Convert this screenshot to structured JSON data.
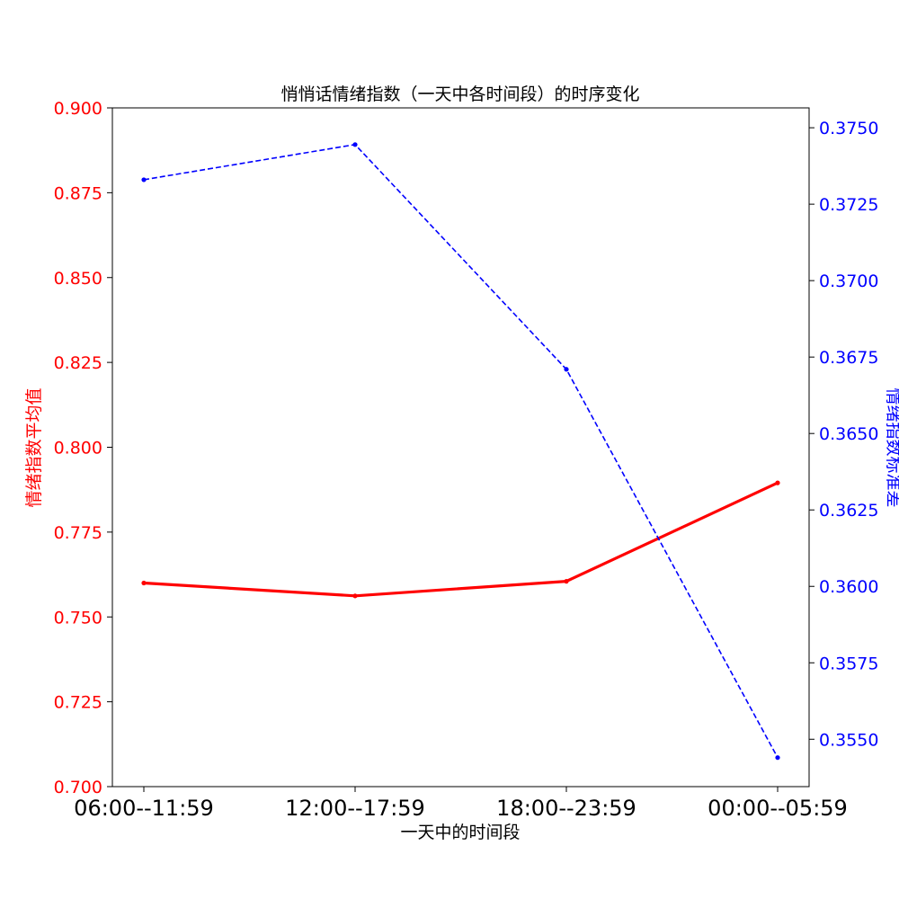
{
  "chart_data": {
    "type": "line",
    "title": "悄悄话情绪指数（一天中各时间段）的时序变化",
    "xlabel": "一天中的时间段",
    "categories": [
      "06:00--11:59",
      "12:00--17:59",
      "18:00--23:59",
      "00:00--05:59"
    ],
    "series": [
      {
        "values": [
          0.76,
          0.7562,
          0.7605,
          0.7895
        ],
        "axis": "left",
        "color": "#ff0000",
        "style": "solid"
      },
      {
        "values": [
          0.3733,
          0.37445,
          0.3671,
          0.3544
        ],
        "axis": "right",
        "color": "#0000ff",
        "style": "dashed"
      }
    ],
    "y_left": {
      "label": "情绪指数平均值",
      "range": [
        0.7,
        0.9
      ],
      "ticks": [
        "0.700",
        "0.725",
        "0.750",
        "0.775",
        "0.800",
        "0.825",
        "0.850",
        "0.875",
        "0.900"
      ],
      "color": "#ff0000"
    },
    "y_right": {
      "label": "情绪指数标准差",
      "range": [
        0.35345,
        0.37565
      ],
      "ticks": [
        "0.3550",
        "0.3575",
        "0.3600",
        "0.3625",
        "0.3650",
        "0.3675",
        "0.3700",
        "0.3725",
        "0.3750"
      ],
      "color": "#0000ff"
    },
    "grid": false,
    "legend": "none"
  }
}
